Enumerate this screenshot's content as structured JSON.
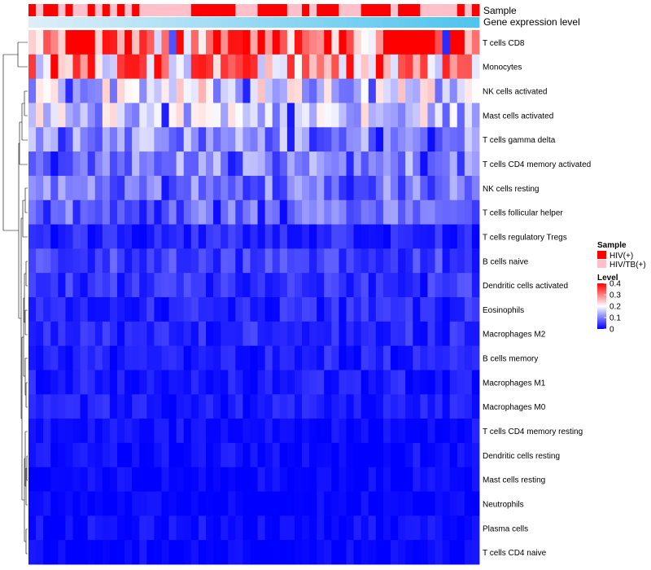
{
  "chart_data": {
    "type": "heatmap",
    "annotation_tracks": [
      "Sample",
      "Gene expression level"
    ],
    "rows": [
      "T cells CD8",
      "Monocytes",
      "NK cells activated",
      "Mast cells activated",
      "T cells gamma delta",
      "T cells CD4 memory activated",
      "NK cells resting",
      "T cells follicular helper",
      "T cells regulatory  Tregs",
      "B cells naive",
      "Dendritic cells activated",
      "Eosinophils",
      "Macrophages M2",
      "B cells memory",
      "Macrophages M1",
      "Macrophages M0",
      "T cells CD4 memory resting",
      "Dendritic cells resting",
      "Mast cells resting",
      "Neutrophils",
      "Plasma cells",
      "T cells CD4 naive"
    ],
    "n_samples": 61,
    "sample_groups": "HPHHPHPPHPHPHPHPPPPPPPHHHHHHPPPHHHHPPHPHHHPPPHHHHPHHHPPPPPHPH",
    "row_base_levels": [
      0.32,
      0.28,
      0.17,
      0.15,
      0.11,
      0.1,
      0.09,
      0.08,
      0.03,
      0.05,
      0.04,
      0.03,
      0.03,
      0.025,
      0.02,
      0.02,
      0.01,
      0.01,
      0.005,
      0.003,
      0.01,
      0.005
    ],
    "legend": {
      "sample_title": "Sample",
      "sample_entries": [
        {
          "label": "HIV(+)",
          "color": "#ff0000"
        },
        {
          "label": "HIV/TB(+)",
          "color": "#ffc0cb"
        }
      ],
      "level_title": "Level",
      "level_ticks": [
        "0.4",
        "0.3",
        "0.2",
        "0.1",
        "0"
      ],
      "level_range": [
        0,
        0.4
      ]
    },
    "colors": {
      "low": "#0000ff",
      "mid": "#ffffff",
      "high": "#ff0000",
      "expression_track_start": "#ddeef8",
      "expression_track_end": "#4fc4ee",
      "dendrogram": "#000000"
    }
  }
}
